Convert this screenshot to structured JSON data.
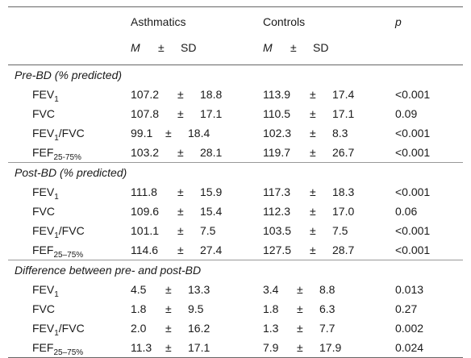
{
  "header": {
    "group_a": "Asthmatics",
    "group_b": "Controls",
    "p_label": "p",
    "m_label": "M",
    "pm": "±",
    "sd_label": "SD"
  },
  "sections": [
    {
      "title": "Pre-BD (% predicted)",
      "rows": [
        {
          "base": "FEV",
          "sub": "1",
          "rest": "",
          "a_m": "107.2",
          "a_sd": "18.8",
          "b_m": "113.9",
          "b_sd": "17.4",
          "p": "<0.001"
        },
        {
          "base": "FVC",
          "sub": "",
          "rest": "",
          "a_m": "107.8",
          "a_sd": "17.1",
          "b_m": "110.5",
          "b_sd": "17.1",
          "p": "0.09"
        },
        {
          "base": "FEV",
          "sub": "1",
          "rest": "/FVC",
          "a_m": "99.1",
          "a_sd": "18.4",
          "b_m": "102.3",
          "b_sd": "8.3",
          "p": "<0.001"
        },
        {
          "base": "FEF",
          "sub": "25-75%",
          "rest": "",
          "a_m": "103.2",
          "a_sd": "28.1",
          "b_m": "119.7",
          "b_sd": "26.7",
          "p": "<0.001"
        }
      ]
    },
    {
      "title": "Post-BD (% predicted)",
      "rows": [
        {
          "base": "FEV",
          "sub": "1",
          "rest": "",
          "a_m": "111.8",
          "a_sd": "15.9",
          "b_m": "117.3",
          "b_sd": "18.3",
          "p": "<0.001"
        },
        {
          "base": "FVC",
          "sub": "",
          "rest": "",
          "a_m": "109.6",
          "a_sd": "15.4",
          "b_m": "112.3",
          "b_sd": "17.0",
          "p": "0.06"
        },
        {
          "base": "FEV",
          "sub": "1",
          "rest": "/FVC",
          "a_m": "101.1",
          "a_sd": "7.5",
          "b_m": "103.5",
          "b_sd": "7.5",
          "p": "<0.001"
        },
        {
          "base": "FEF",
          "sub": "25–75%",
          "rest": "",
          "a_m": "114.6",
          "a_sd": "27.4",
          "b_m": "127.5",
          "b_sd": "28.7",
          "p": "<0.001"
        }
      ]
    },
    {
      "title": "Difference between pre- and post-BD",
      "rows": [
        {
          "base": "FEV",
          "sub": "1",
          "rest": "",
          "a_m": "4.5",
          "a_sd": "13.3",
          "b_m": "3.4",
          "b_sd": "8.8",
          "p": "0.013"
        },
        {
          "base": "FVC",
          "sub": "",
          "rest": "",
          "a_m": "1.8",
          "a_sd": "9.5",
          "b_m": "1.8",
          "b_sd": "6.3",
          "p": "0.27"
        },
        {
          "base": "FEV",
          "sub": "1",
          "rest": "/FVC",
          "a_m": "2.0",
          "a_sd": "16.2",
          "b_m": "1.3",
          "b_sd": "7.7",
          "p": "0.002"
        },
        {
          "base": "FEF",
          "sub": "25–75%",
          "rest": "",
          "a_m": "11.3",
          "a_sd": "17.1",
          "b_m": "7.9",
          "b_sd": "17.9",
          "p": "0.024"
        }
      ]
    }
  ]
}
